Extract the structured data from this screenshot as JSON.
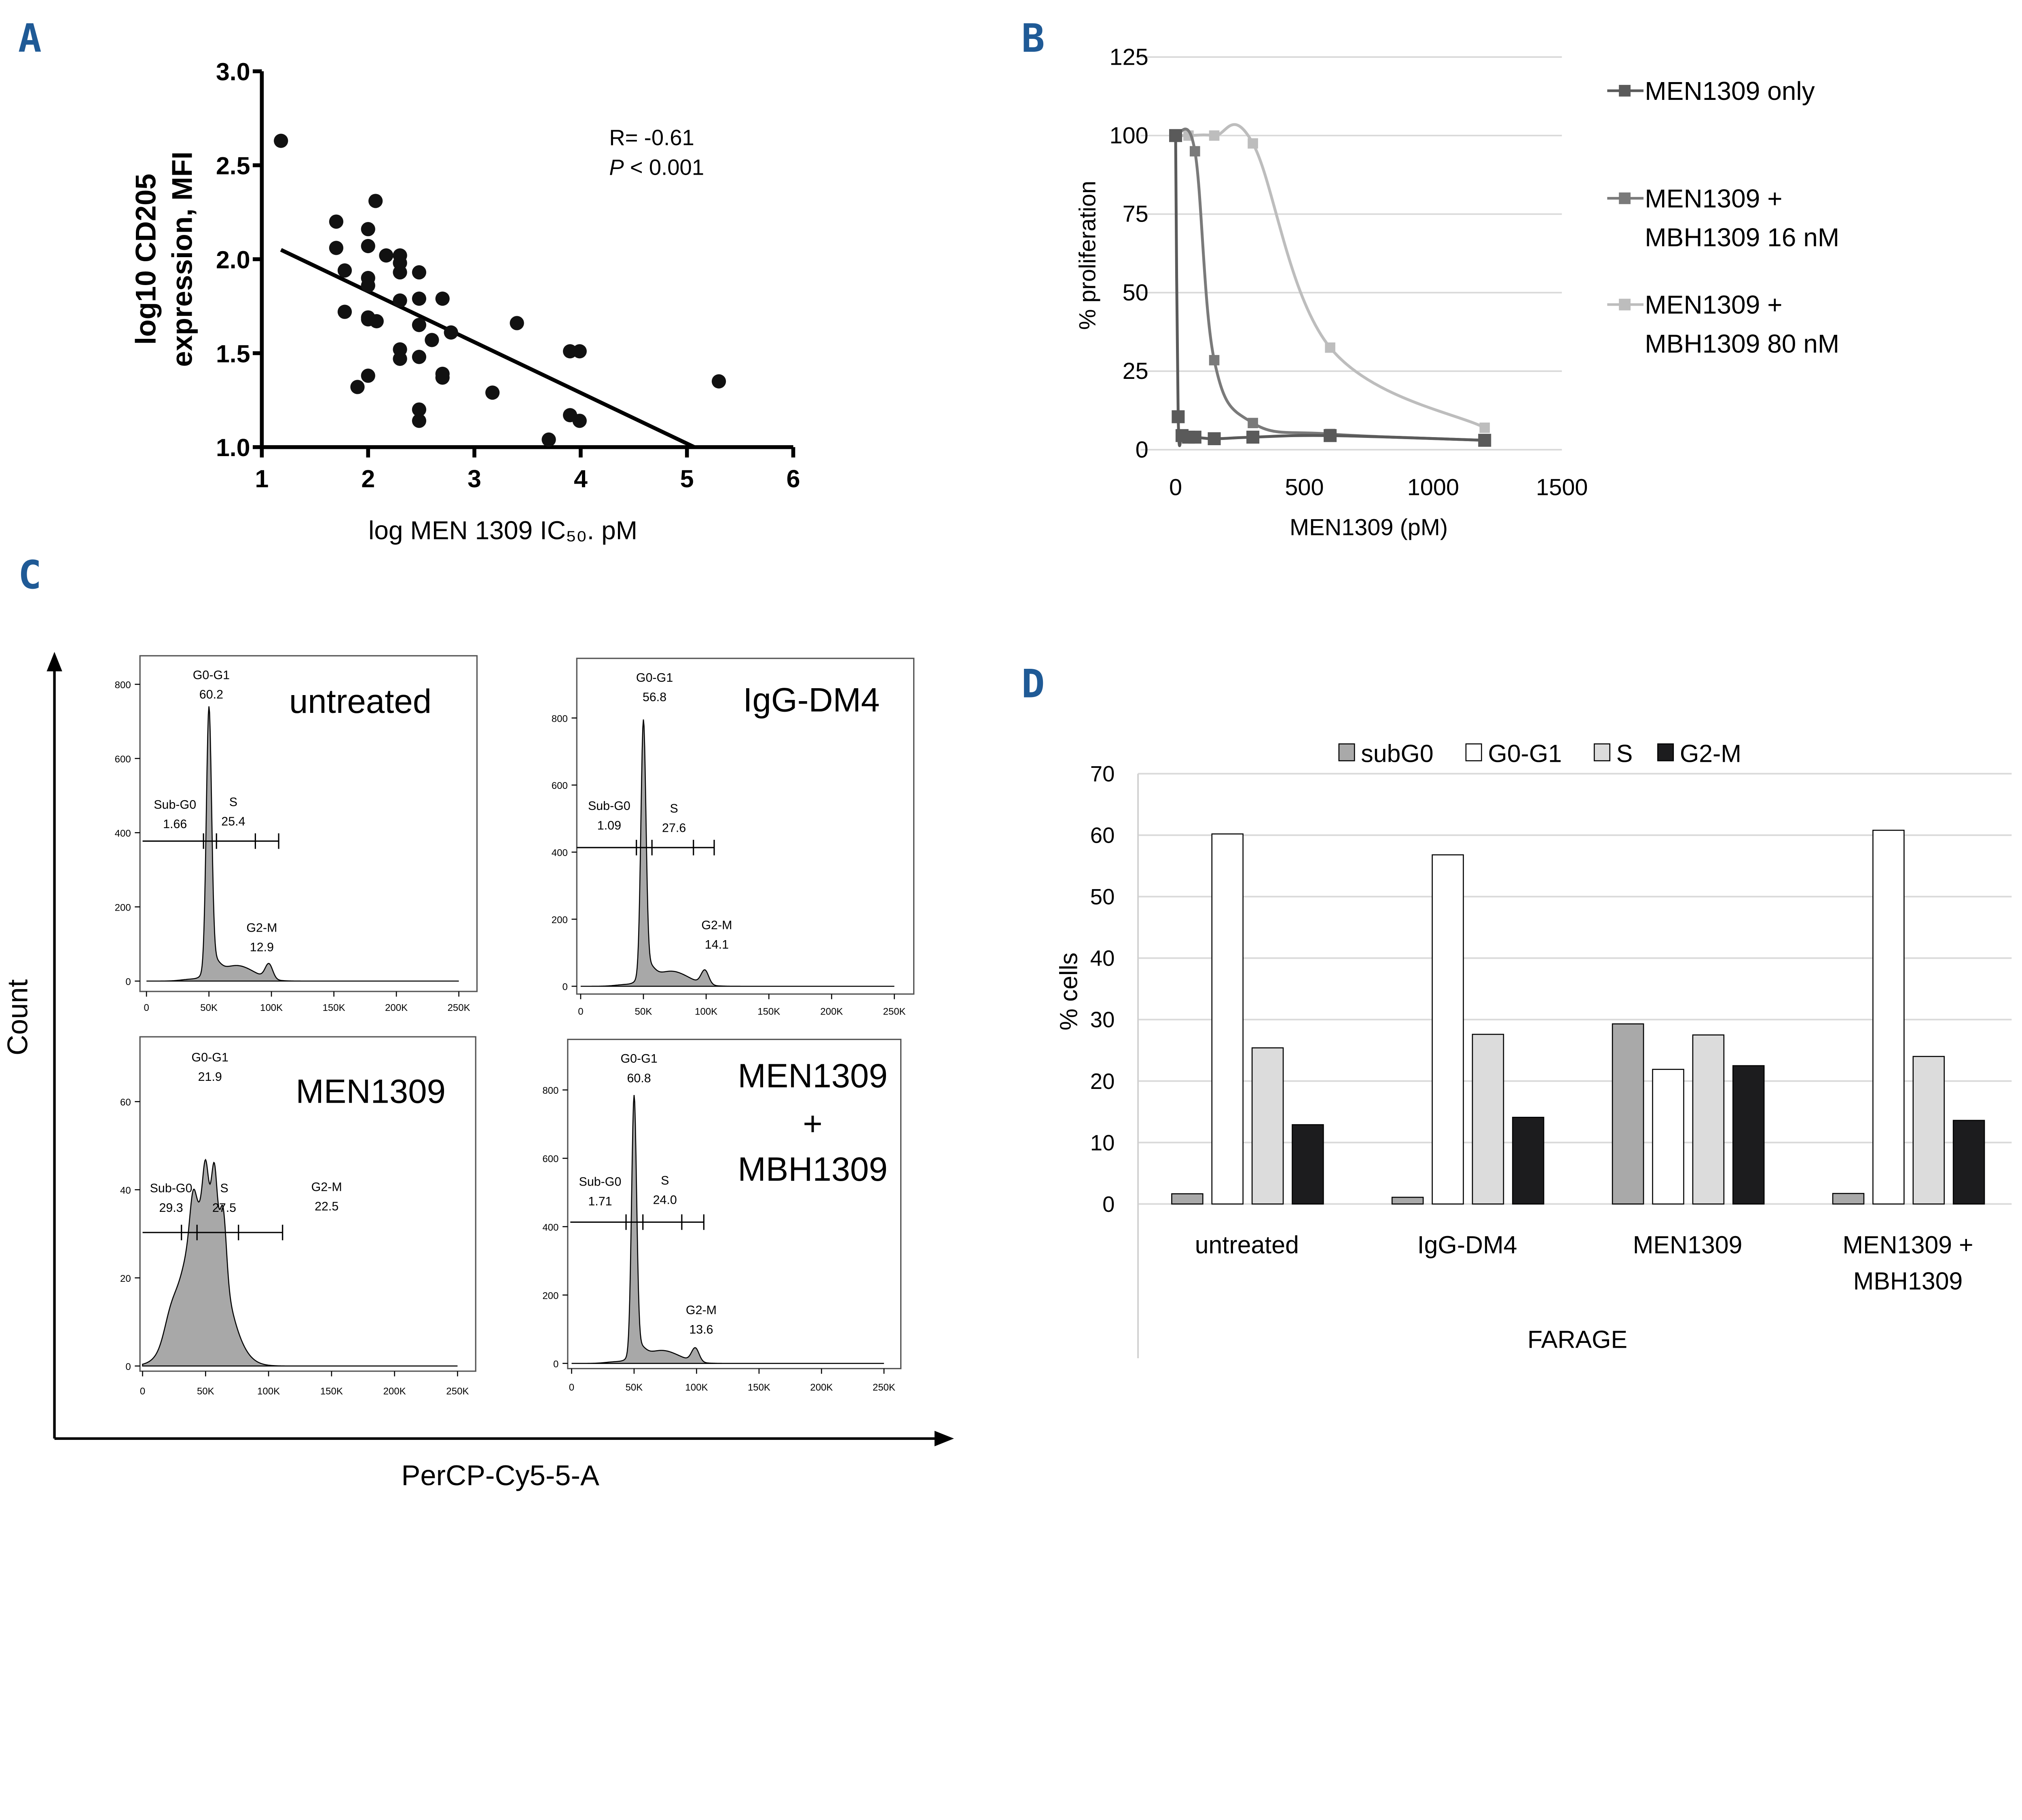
{
  "panel_labels": {
    "a": "A",
    "b": "B",
    "c": "C",
    "d": "D"
  },
  "chart_data": [
    {
      "panel": "A",
      "type": "scatter",
      "xlabel": "log MEN 1309 IC₅₀. pM",
      "ylabel_lines": [
        "log10 CD205",
        "expression, MFI"
      ],
      "xlim": [
        1,
        6
      ],
      "ylim": [
        1.0,
        3.0
      ],
      "x_ticks": [
        "1",
        "2",
        "3",
        "4",
        "5",
        "6"
      ],
      "y_ticks": [
        "1.0",
        "1.5",
        "2.0",
        "2.5",
        "3.0"
      ],
      "annotation": {
        "r": "R= -0.61",
        "p_symbol": "P",
        "p_value": " < 0.001"
      },
      "regression_line": [
        [
          1.18,
          2.05
        ],
        [
          5.07,
          1.0
        ]
      ],
      "points": [
        [
          1.18,
          2.63
        ],
        [
          2.07,
          2.31
        ],
        [
          1.7,
          2.2
        ],
        [
          2.0,
          2.16
        ],
        [
          1.7,
          2.06
        ],
        [
          2.0,
          2.07
        ],
        [
          2.17,
          2.02
        ],
        [
          2.3,
          2.02
        ],
        [
          2.3,
          1.98
        ],
        [
          2.3,
          1.93
        ],
        [
          2.48,
          1.93
        ],
        [
          1.78,
          1.94
        ],
        [
          2.0,
          1.9
        ],
        [
          2.0,
          1.86
        ],
        [
          2.3,
          1.78
        ],
        [
          2.48,
          1.79
        ],
        [
          2.7,
          1.79
        ],
        [
          1.78,
          1.72
        ],
        [
          2.0,
          1.69
        ],
        [
          2.08,
          1.67
        ],
        [
          2.0,
          1.68
        ],
        [
          2.48,
          1.65
        ],
        [
          2.78,
          1.61
        ],
        [
          2.6,
          1.57
        ],
        [
          3.4,
          1.66
        ],
        [
          2.3,
          1.52
        ],
        [
          2.3,
          1.47
        ],
        [
          2.48,
          1.48
        ],
        [
          2.7,
          1.39
        ],
        [
          2.7,
          1.37
        ],
        [
          2.0,
          1.38
        ],
        [
          1.9,
          1.32
        ],
        [
          3.17,
          1.29
        ],
        [
          3.9,
          1.51
        ],
        [
          3.99,
          1.51
        ],
        [
          5.3,
          1.35
        ],
        [
          2.48,
          1.2
        ],
        [
          2.48,
          1.14
        ],
        [
          3.9,
          1.17
        ],
        [
          3.99,
          1.14
        ],
        [
          3.7,
          1.04
        ]
      ]
    },
    {
      "panel": "B",
      "type": "line",
      "xlabel": "MEN1309 (pM)",
      "ylabel": "% proliferation",
      "xlim": [
        0,
        1500
      ],
      "ylim": [
        0,
        125
      ],
      "x_ticks": [
        "0",
        "500",
        "1000",
        "1500"
      ],
      "y_ticks": [
        "0",
        "25",
        "50",
        "75",
        "100",
        "125"
      ],
      "grid": true,
      "legend_position": "right",
      "series": [
        {
          "name_lines": [
            "MEN1309 only"
          ],
          "color": "#5a5a5a",
          "x": [
            0,
            10,
            25,
            50,
            75,
            150,
            300,
            600,
            1200
          ],
          "y": [
            100,
            10.5,
            4.5,
            4,
            4,
            3.5,
            4,
            4.5,
            3
          ]
        },
        {
          "name_lines": [
            "MEN1309 +",
            "MBH1309 16 nM"
          ],
          "color": "#7a7a7a",
          "x": [
            0,
            75,
            150,
            300,
            600,
            1200
          ],
          "y": [
            100,
            95,
            28.5,
            8.5,
            5,
            3
          ]
        },
        {
          "name_lines": [
            "MEN1309 +",
            "MBH1309 80 nM"
          ],
          "color": "#bdbdbd",
          "x": [
            0,
            50,
            150,
            300,
            600,
            1200
          ],
          "y": [
            100,
            100,
            100,
            97.5,
            32.5,
            7
          ]
        }
      ]
    },
    {
      "panel": "C",
      "type": "histogram",
      "xlabel": "PerCP-Cy5-5-A",
      "ylabel": "Count",
      "x_ticks": [
        "0",
        "50K",
        "100K",
        "150K",
        "200K",
        "250K"
      ],
      "histograms": [
        {
          "title_lines": [
            "untreated"
          ],
          "y_ticks": [
            "0",
            "200",
            "400",
            "600",
            "800"
          ],
          "gates": {
            "g0g1": {
              "label": "G0-G1",
              "value": "60.2"
            },
            "subg0": {
              "label": "Sub-G0",
              "value": "1.66"
            },
            "s": {
              "label": "S",
              "value": "25.4"
            },
            "g2m": {
              "label": "G2-M",
              "value": "12.9"
            }
          }
        },
        {
          "title_lines": [
            "IgG-DM4"
          ],
          "y_ticks": [
            "0",
            "200",
            "400",
            "600",
            "800"
          ],
          "gates": {
            "g0g1": {
              "label": "G0-G1",
              "value": "56.8"
            },
            "subg0": {
              "label": "Sub-G0",
              "value": "1.09"
            },
            "s": {
              "label": "S",
              "value": "27.6"
            },
            "g2m": {
              "label": "G2-M",
              "value": "14.1"
            }
          }
        },
        {
          "title_lines": [
            "MEN1309"
          ],
          "y_ticks": [
            "0",
            "20",
            "40",
            "60"
          ],
          "gates": {
            "g0g1": {
              "label": "G0-G1",
              "value": "21.9"
            },
            "subg0": {
              "label": "Sub-G0",
              "value": "29.3"
            },
            "s": {
              "label": "S",
              "value": "27.5"
            },
            "g2m": {
              "label": "G2-M",
              "value": "22.5"
            }
          }
        },
        {
          "title_lines": [
            "MEN1309",
            "+",
            "MBH1309"
          ],
          "y_ticks": [
            "0",
            "200",
            "400",
            "600",
            "800"
          ],
          "gates": {
            "g0g1": {
              "label": "G0-G1",
              "value": "60.8"
            },
            "subg0": {
              "label": "Sub-G0",
              "value": "1.71"
            },
            "s": {
              "label": "S",
              "value": "24.0"
            },
            "g2m": {
              "label": "G2-M",
              "value": "13.6"
            }
          }
        }
      ]
    },
    {
      "panel": "D",
      "type": "bar",
      "ylabel": "% cells",
      "xlabel": "FARAGE",
      "ylim": [
        0,
        70
      ],
      "y_ticks": [
        "0",
        "10",
        "20",
        "30",
        "40",
        "50",
        "60",
        "70"
      ],
      "grid": true,
      "legend_position": "top",
      "categories": [
        [
          "untreated"
        ],
        [
          "IgG-DM4"
        ],
        [
          "MEN1309"
        ],
        [
          "MEN1309 +",
          "MBH1309"
        ]
      ],
      "series": [
        {
          "name": "subG0",
          "color": "#a9a9a9",
          "values": [
            1.66,
            1.09,
            29.3,
            1.71
          ]
        },
        {
          "name": "G0-G1",
          "color": "#ffffff",
          "values": [
            60.2,
            56.8,
            21.9,
            60.8
          ]
        },
        {
          "name": "S",
          "color": "#dcdcdc",
          "values": [
            25.4,
            27.6,
            27.5,
            24.0
          ]
        },
        {
          "name": "G2-M",
          "color": "#1c1c1e",
          "values": [
            12.9,
            14.1,
            22.5,
            13.6
          ]
        }
      ]
    }
  ]
}
